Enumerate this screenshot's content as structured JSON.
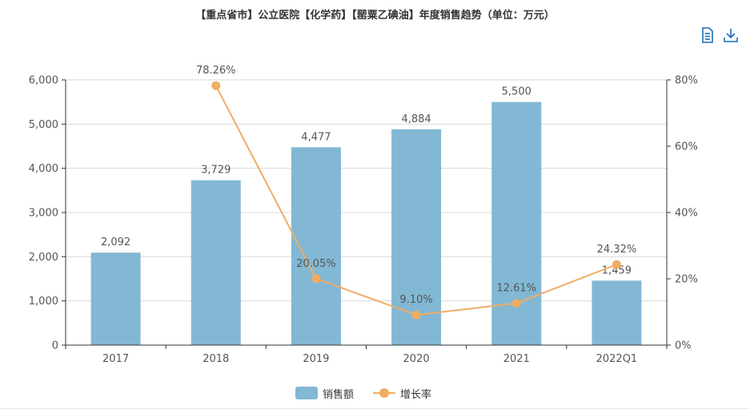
{
  "title": "【重点省市】公立医院【化学药】【罂粟乙碘油】年度销售趋势（单位：万元）",
  "toolbar": {
    "data_view_icon": "document-icon",
    "save_icon": "download-icon",
    "icon_color": "#1e6bb8"
  },
  "chart_data": {
    "type": "bar",
    "categories": [
      "2017",
      "2018",
      "2019",
      "2020",
      "2021",
      "2022Q1"
    ],
    "series": [
      {
        "name": "销售额",
        "type": "bar",
        "axis": "left",
        "color": "#82b8d4",
        "values": [
          2092,
          3729,
          4477,
          4884,
          5500,
          1459
        ],
        "labels": [
          "2,092",
          "3,729",
          "4,477",
          "4,884",
          "5,500",
          "1,459"
        ]
      },
      {
        "name": "增长率",
        "type": "line",
        "axis": "right",
        "color": "#f0ad64",
        "values": [
          null,
          78.26,
          20.05,
          9.1,
          12.61,
          24.32
        ],
        "labels": [
          "",
          "78.26%",
          "20.05%",
          "9.10%",
          "12.61%",
          "24.32%"
        ]
      }
    ],
    "y_left": {
      "min": 0,
      "max": 6000,
      "ticks": [
        "0",
        "1,000",
        "2,000",
        "3,000",
        "4,000",
        "5,000",
        "6,000"
      ]
    },
    "y_right": {
      "min": 0,
      "max": 80,
      "ticks": [
        "0%",
        "20%",
        "40%",
        "60%",
        "80%"
      ]
    },
    "grid": true,
    "legend_position": "bottom-center"
  }
}
